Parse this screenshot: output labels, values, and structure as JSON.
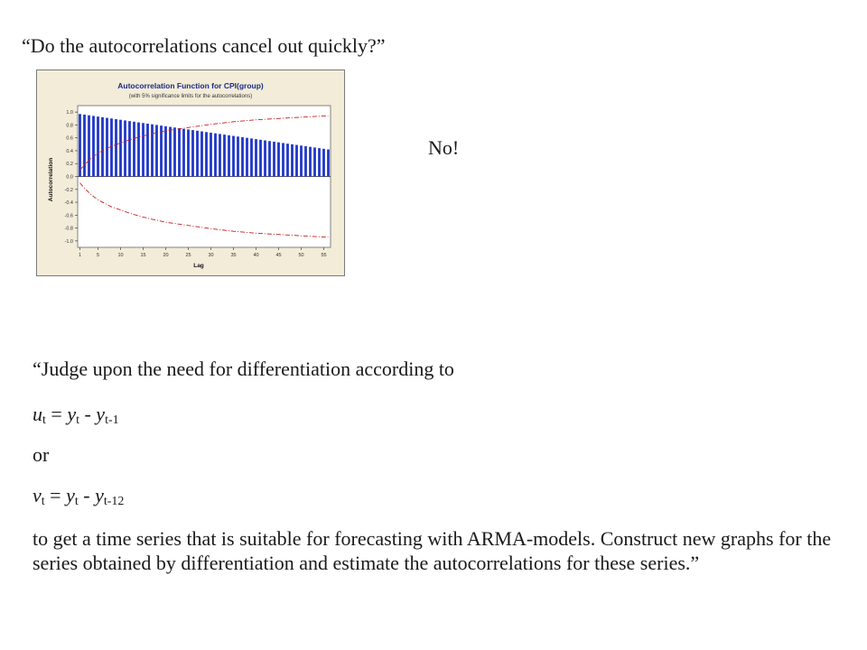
{
  "slide": {
    "question1": "“Do the autocorrelations cancel out quickly?”",
    "answer": "No!",
    "question2": "“Judge upon the need for differentiation according to",
    "eq1": {
      "lhs": "u",
      "lhs_sub": "t",
      "eq": " = ",
      "a": "y",
      "a_sub": "t",
      "minus": " - ",
      "b": "y",
      "b_sub": "t-1"
    },
    "or": "or",
    "eq2": {
      "lhs": "v",
      "lhs_sub": "t",
      "eq": " = ",
      "a": "y",
      "a_sub": "t",
      "minus": " - ",
      "b": "y",
      "b_sub": "t-12"
    },
    "paragraph": "to get a time series that is suitable for forecasting with ARMA-models. Construct new graphs for the series obtained by differentiation and estimate the autocorrelations for these series.”"
  },
  "chart_data": {
    "type": "bar",
    "title": "Autocorrelation Function for CPI(group)",
    "subtitle": "(with 5% significance limits for the autocorrelations)",
    "xlabel": "Lag",
    "ylabel": "Autocorrelation",
    "xlim": [
      1,
      56
    ],
    "ylim": [
      -1.1,
      1.1
    ],
    "x_ticks": [
      1,
      5,
      10,
      15,
      20,
      25,
      30,
      35,
      40,
      45,
      50,
      55
    ],
    "y_ticks": [
      "1.0",
      "0.8",
      "0.6",
      "0.4",
      "0.2",
      "0.0",
      "-0.2",
      "-0.4",
      "-0.6",
      "-0.8",
      "-1.0"
    ],
    "acf": {
      "lag_start": 1,
      "values": [
        0.97,
        0.96,
        0.95,
        0.94,
        0.93,
        0.92,
        0.91,
        0.9,
        0.89,
        0.88,
        0.87,
        0.86,
        0.85,
        0.84,
        0.83,
        0.82,
        0.81,
        0.8,
        0.79,
        0.78,
        0.77,
        0.76,
        0.75,
        0.74,
        0.73,
        0.72,
        0.71,
        0.7,
        0.69,
        0.68,
        0.67,
        0.66,
        0.65,
        0.64,
        0.63,
        0.62,
        0.61,
        0.6,
        0.59,
        0.58,
        0.57,
        0.56,
        0.55,
        0.54,
        0.53,
        0.52,
        0.51,
        0.5,
        0.49,
        0.48,
        0.47,
        0.46,
        0.45,
        0.44,
        0.43,
        0.42
      ]
    },
    "significance_limits": {
      "lags": [
        1,
        2,
        3,
        4,
        5,
        6,
        8,
        10,
        12,
        15,
        18,
        20,
        25,
        30,
        35,
        40,
        45,
        50,
        55,
        56
      ],
      "upper": [
        0.1,
        0.18,
        0.25,
        0.31,
        0.36,
        0.4,
        0.47,
        0.52,
        0.57,
        0.63,
        0.68,
        0.71,
        0.76,
        0.81,
        0.85,
        0.88,
        0.9,
        0.92,
        0.94,
        0.94
      ]
    },
    "colors": {
      "bars": "#1f35c8",
      "limits": "#c81e1e",
      "frame_bg": "#f2ecd8",
      "plot_bg": "#ffffff",
      "title": "#1c2a8a"
    }
  }
}
